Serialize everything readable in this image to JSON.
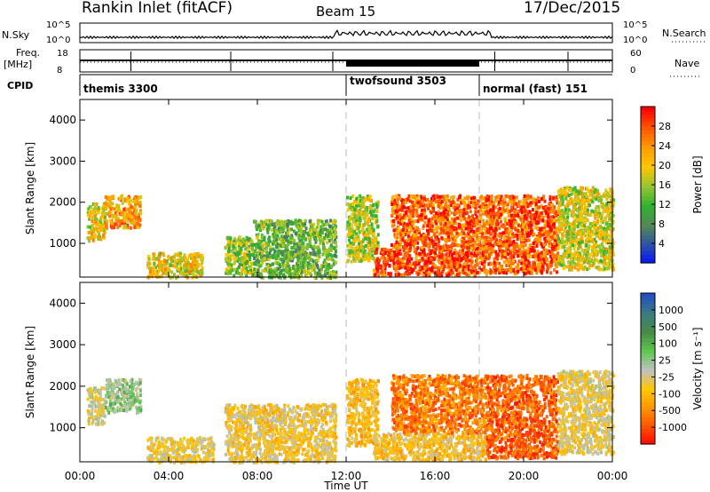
{
  "header": {
    "title": "Rankin Inlet (fitACF)",
    "beam": "Beam 15",
    "date": "17/Dec/2015"
  },
  "panels": {
    "nsky": {
      "left_label": "N.Sky",
      "right_label": "N.Search",
      "ticks_left": [
        "10^5",
        "10^0"
      ],
      "ticks_right": [
        "10^5",
        "10^0"
      ]
    },
    "freq": {
      "left_label_line1": "Freq.",
      "left_label_line2": "[MHz]",
      "right_label": "Nave",
      "ticks_left": [
        "18",
        "8"
      ],
      "ticks_right": [
        "60",
        "0"
      ]
    },
    "cpid": {
      "label": "CPID",
      "segments": [
        {
          "name": "themis 3300",
          "start_hour": 0
        },
        {
          "name": "twofsound 3503",
          "start_hour": 12
        },
        {
          "name": "normal (fast) 151",
          "start_hour": 18
        }
      ]
    }
  },
  "axes": {
    "x_ticks": [
      "00:00",
      "04:00",
      "08:00",
      "12:00",
      "16:00",
      "20:00",
      "00:00"
    ],
    "x_label": "Time UT",
    "y_ticks": [
      "1000",
      "2000",
      "3000",
      "4000"
    ],
    "y_label": "Slant Range [km]"
  },
  "colorbars": {
    "power": {
      "label": "Power [dB]",
      "ticks": [
        "28",
        "24",
        "20",
        "16",
        "12",
        "8",
        "4"
      ]
    },
    "velocity": {
      "label": "Velocity [m s⁻¹]",
      "ticks": [
        "1000",
        "500",
        "100",
        "25",
        "-25",
        "-100",
        "-500",
        "-1000"
      ]
    }
  },
  "colors": {
    "power_scale": [
      "#ff0000",
      "#ff5500",
      "#ff9a00",
      "#ffc600",
      "#97c431",
      "#2fb22f",
      "#558855",
      "#2a52a8",
      "#0010ff"
    ],
    "velocity_scale": [
      "#2050c0",
      "#3c7a80",
      "#468c46",
      "#5fc850",
      "#c0c0c0",
      "#ffc800",
      "#ff9600",
      "#ff5000",
      "#ff0000"
    ]
  },
  "chart_data": [
    {
      "type": "heatmap",
      "title": "Power",
      "xlabel": "",
      "ylabel": "Slant Range [km]",
      "xlim": [
        0,
        24
      ],
      "ylim": [
        180,
        4500
      ],
      "cbar_range": [
        0,
        30
      ],
      "echo_regions": [
        {
          "t": [
            0.3,
            1.1
          ],
          "r": [
            1100,
            2000
          ],
          "level": 18
        },
        {
          "t": [
            1.1,
            2.7
          ],
          "r": [
            1400,
            2200
          ],
          "level": 22
        },
        {
          "t": [
            3.0,
            5.5
          ],
          "r": [
            200,
            800
          ],
          "level": 18
        },
        {
          "t": [
            6.5,
            7.8
          ],
          "r": [
            250,
            1200
          ],
          "level": 14
        },
        {
          "t": [
            7.8,
            11.5
          ],
          "r": [
            200,
            1600
          ],
          "level": 12
        },
        {
          "t": [
            12.0,
            13.4
          ],
          "r": [
            600,
            2200
          ],
          "level": 16
        },
        {
          "t": [
            13.2,
            18.3
          ],
          "r": [
            250,
            900
          ],
          "level": 27
        },
        {
          "t": [
            14.0,
            18.3
          ],
          "r": [
            900,
            2200
          ],
          "level": 25
        },
        {
          "t": [
            18.3,
            21.5
          ],
          "r": [
            300,
            2200
          ],
          "level": 26
        },
        {
          "t": [
            21.5,
            24.0
          ],
          "r": [
            400,
            2400
          ],
          "level": 17
        }
      ]
    },
    {
      "type": "heatmap",
      "title": "Velocity",
      "xlabel": "Time UT",
      "ylabel": "Slant Range [km]",
      "xlim": [
        0,
        24
      ],
      "ylim": [
        180,
        4500
      ],
      "cbar_range": [
        -1000,
        1000
      ],
      "echo_regions": [
        {
          "t": [
            0.3,
            1.1
          ],
          "r": [
            1100,
            2000
          ],
          "velocity": -100
        },
        {
          "t": [
            1.1,
            2.7
          ],
          "r": [
            1400,
            2200
          ],
          "velocity": 150
        },
        {
          "t": [
            3.0,
            6.0
          ],
          "r": [
            200,
            800
          ],
          "velocity": -150
        },
        {
          "t": [
            6.5,
            11.5
          ],
          "r": [
            200,
            1600
          ],
          "velocity": -200
        },
        {
          "t": [
            12.0,
            13.4
          ],
          "r": [
            600,
            2200
          ],
          "velocity": -300
        },
        {
          "t": [
            13.2,
            18.3
          ],
          "r": [
            250,
            900
          ],
          "velocity": -250
        },
        {
          "t": [
            14.0,
            18.3
          ],
          "r": [
            900,
            2300
          ],
          "velocity": -600
        },
        {
          "t": [
            18.3,
            21.5
          ],
          "r": [
            300,
            2300
          ],
          "velocity": -700
        },
        {
          "t": [
            21.5,
            24.0
          ],
          "r": [
            400,
            2400
          ],
          "velocity": -150
        }
      ]
    }
  ]
}
